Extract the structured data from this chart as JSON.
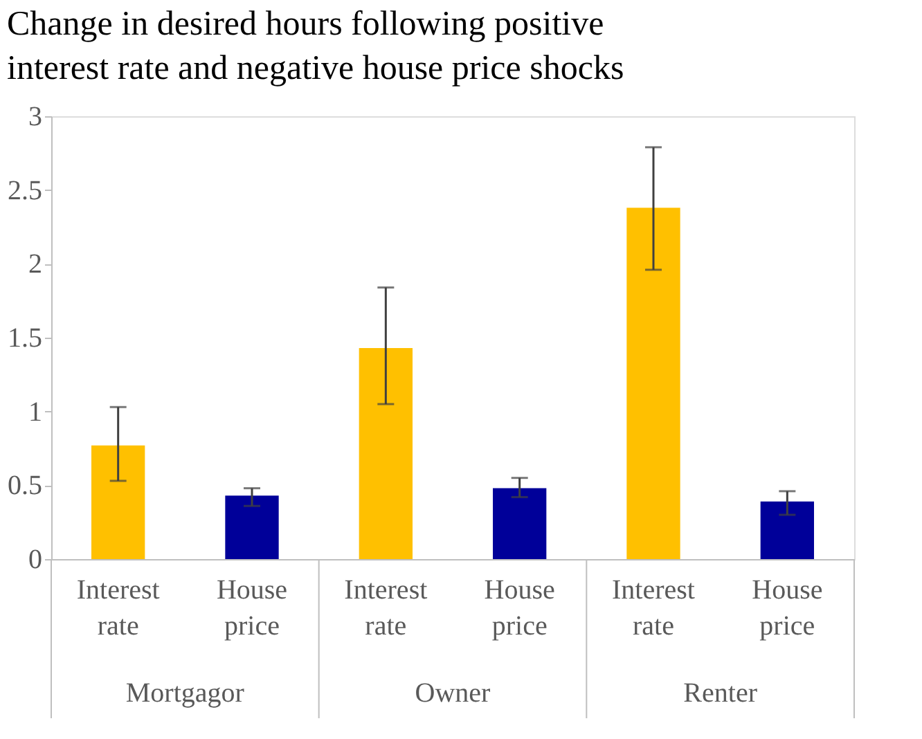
{
  "chart_data": {
    "type": "bar",
    "title": "Change in desired hours following positive interest rate and negative house price shocks",
    "categories": [
      "Interest rate",
      "House price",
      "Interest rate",
      "House price",
      "Interest rate",
      "House price"
    ],
    "values": [
      0.77,
      0.43,
      1.43,
      0.48,
      2.38,
      0.39
    ],
    "colors": [
      "#ffc000",
      "#000099",
      "#ffc000",
      "#000099",
      "#ffc000",
      "#000099"
    ],
    "errors": [
      [
        0.53,
        1.03
      ],
      [
        0.36,
        0.48
      ],
      [
        1.05,
        1.84
      ],
      [
        0.42,
        0.55
      ],
      [
        1.96,
        2.79
      ],
      [
        0.3,
        0.46
      ]
    ],
    "annotations": [
      "Mortgagor",
      "Owner",
      "Renter"
    ],
    "ylim": [
      0,
      3
    ],
    "yticks": [
      0,
      0.5,
      1,
      1.5,
      2,
      2.5,
      3
    ],
    "grid": false
  }
}
